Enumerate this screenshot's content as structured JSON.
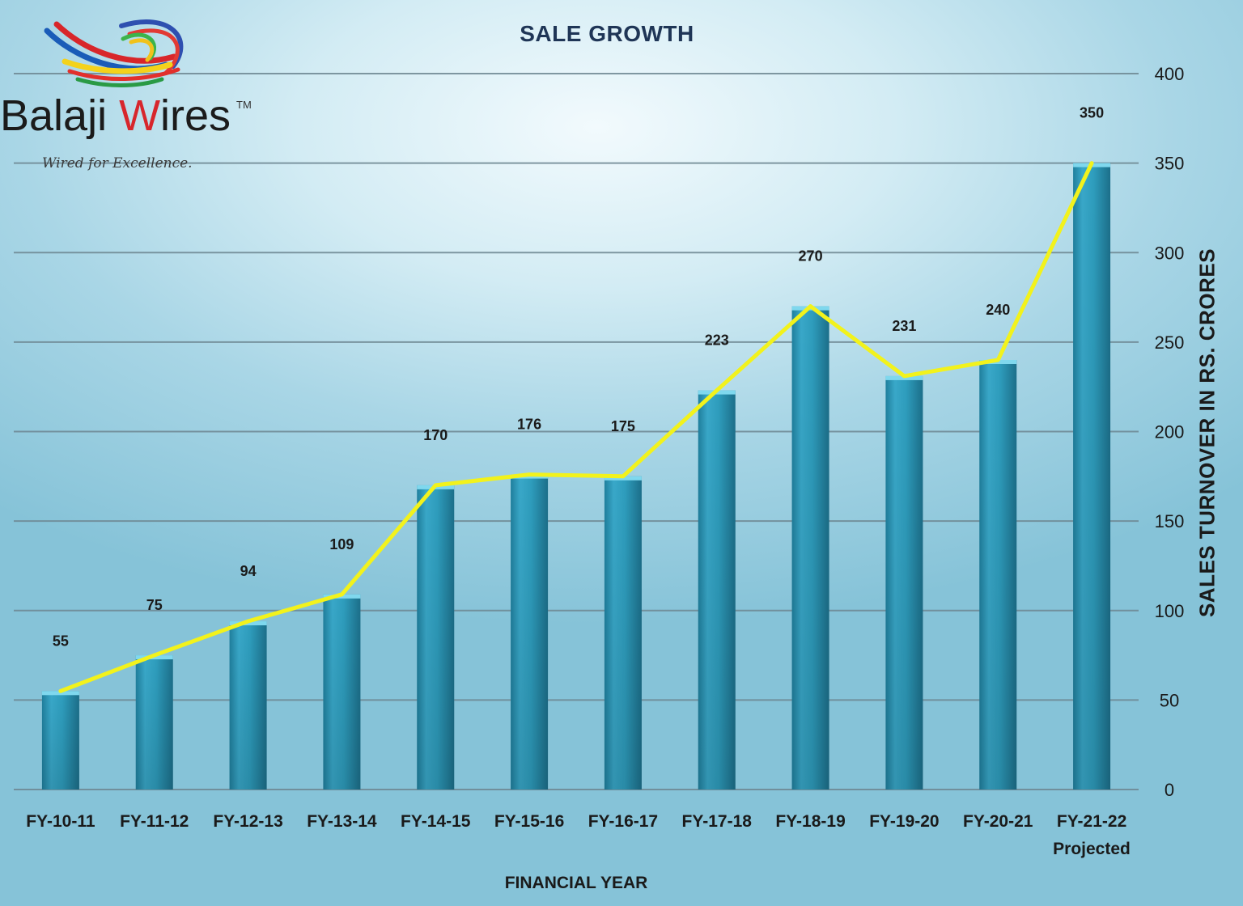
{
  "brand": {
    "name_part1": "Balaji ",
    "name_accent": "W",
    "name_part2": "ires",
    "trademark": "TM",
    "tagline": "Wired for Excellence."
  },
  "chart_data": {
    "type": "bar",
    "title": "SALE GROWTH",
    "xlabel": "FINANCIAL YEAR",
    "ylabel": "SALES TURNOVER IN RS. CRORES",
    "categories": [
      "FY-10-11",
      "FY-11-12",
      "FY-12-13",
      "FY-13-14",
      "FY-14-15",
      "FY-15-16",
      "FY-16-17",
      "FY-17-18",
      "FY-18-19",
      "FY-19-20",
      "FY-20-21",
      "FY-21-22"
    ],
    "category_note": "Projected",
    "series": [
      {
        "type": "bar",
        "values": [
          55,
          75,
          94,
          109,
          170,
          176,
          175,
          223,
          270,
          231,
          240,
          350
        ]
      },
      {
        "type": "line",
        "values": [
          55,
          75,
          94,
          109,
          170,
          176,
          175,
          223,
          270,
          231,
          240,
          350
        ]
      }
    ],
    "ylim": [
      0,
      400
    ],
    "yticks": [
      0,
      50,
      100,
      150,
      200,
      250,
      300,
      350,
      400
    ],
    "y_axis_side": "right",
    "grid": true,
    "data_labels": [
      "55",
      "75",
      "94",
      "109",
      "170",
      "176",
      "175",
      "223",
      "270",
      "231",
      "240",
      "350"
    ],
    "colors": {
      "bar": "#2b9cbd",
      "bar_top": "#7fd8ee",
      "line": "#f2f21c",
      "grid": "#6e8792"
    }
  }
}
